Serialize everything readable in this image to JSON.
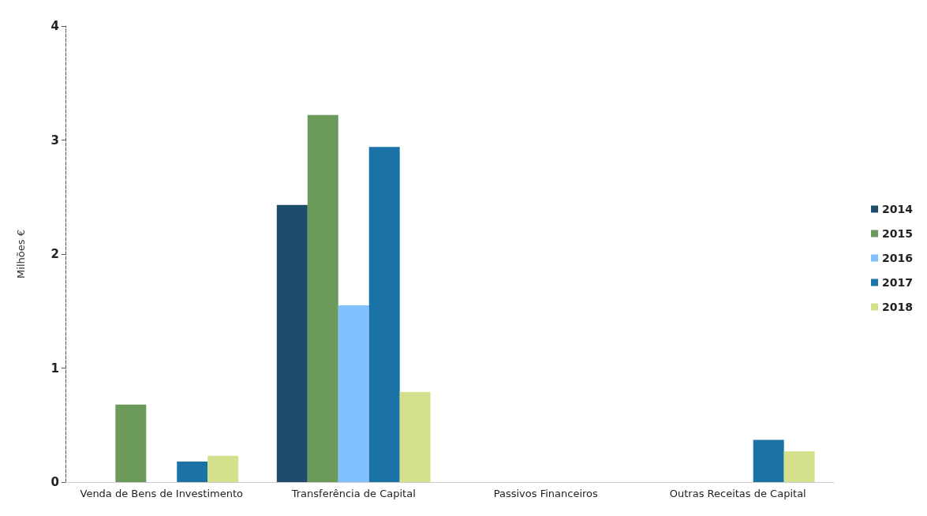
{
  "chart_data": {
    "type": "bar",
    "ylabel": "Milhões €",
    "categories": [
      "Venda de Bens de Investimento",
      "Transferência de Capital",
      "Passivos Financeiros",
      "Outras Receitas de Capital"
    ],
    "series": [
      {
        "name": "2014",
        "color": "#1e4d6b",
        "values": [
          0,
          2.43,
          0,
          0
        ]
      },
      {
        "name": "2015",
        "color": "#6b9a5b",
        "values": [
          0.68,
          3.22,
          0,
          0
        ]
      },
      {
        "name": "2016",
        "color": "#80c0ff",
        "values": [
          0,
          1.55,
          0,
          0
        ]
      },
      {
        "name": "2017",
        "color": "#1b72a6",
        "values": [
          0.18,
          2.94,
          0,
          0.37
        ]
      },
      {
        "name": "2018",
        "color": "#d5e08c",
        "values": [
          0.23,
          0.79,
          0,
          0.27
        ]
      }
    ],
    "ylim": [
      0,
      4
    ],
    "yticks": [
      0,
      1,
      2,
      3,
      4
    ],
    "grid": false,
    "legend": "right"
  }
}
